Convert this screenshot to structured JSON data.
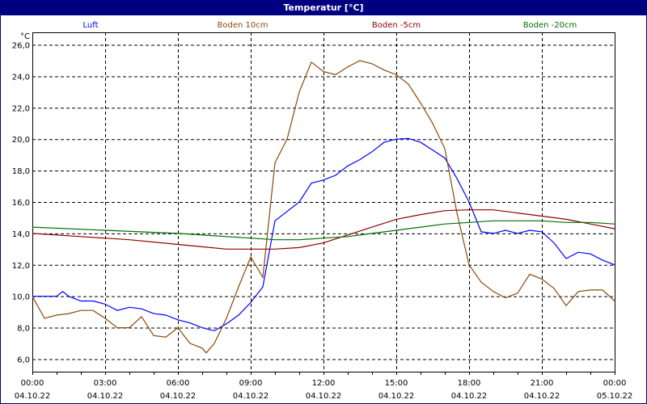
{
  "window": {
    "title": "Temperatur [°C]"
  },
  "chart_data": {
    "type": "line",
    "title": "Temperatur [°C]",
    "ylabel": "°C",
    "ylim": [
      5.2,
      26.8
    ],
    "yticks": [
      "6,0",
      "8,0",
      "10,0",
      "12,0",
      "14,0",
      "16,0",
      "18,0",
      "20,0",
      "22,0",
      "24,0",
      "26,0"
    ],
    "ytick_values": [
      6,
      8,
      10,
      12,
      14,
      16,
      18,
      20,
      22,
      24,
      26
    ],
    "xlim": [
      "04.10.22 00:00",
      "05.10.22 00:00"
    ],
    "xticks": [
      {
        "time": "00:00",
        "date": "04.10.22"
      },
      {
        "time": "03:00",
        "date": "04.10.22"
      },
      {
        "time": "06:00",
        "date": "04.10.22"
      },
      {
        "time": "09:00",
        "date": "04.10.22"
      },
      {
        "time": "12:00",
        "date": "04.10.22"
      },
      {
        "time": "15:00",
        "date": "04.10.22"
      },
      {
        "time": "18:00",
        "date": "04.10.22"
      },
      {
        "time": "21:00",
        "date": "04.10.22"
      },
      {
        "time": "00:00",
        "date": "05.10.22"
      }
    ],
    "grid": true,
    "legend_placement": "top",
    "series": [
      {
        "name": "Luft",
        "color": "#0000ff",
        "x": [
          "00:00",
          "00:30",
          "01:00",
          "01:15",
          "01:30",
          "02:00",
          "02:30",
          "03:00",
          "03:30",
          "04:00",
          "04:30",
          "05:00",
          "05:30",
          "06:00",
          "06:30",
          "07:00",
          "07:30",
          "08:00",
          "08:30",
          "09:00",
          "09:30",
          "10:00",
          "10:30",
          "11:00",
          "11:30",
          "12:00",
          "12:30",
          "13:00",
          "13:30",
          "14:00",
          "14:30",
          "15:00",
          "15:30",
          "16:00",
          "16:30",
          "17:00",
          "17:30",
          "18:00",
          "18:30",
          "19:00",
          "19:30",
          "20:00",
          "20:30",
          "21:00",
          "21:30",
          "22:00",
          "22:30",
          "23:00",
          "23:30",
          "24:00"
        ],
        "values": [
          10.0,
          10.0,
          10.0,
          10.3,
          10.0,
          9.7,
          9.7,
          9.5,
          9.1,
          9.3,
          9.2,
          8.9,
          8.8,
          8.5,
          8.3,
          8.0,
          7.8,
          8.25,
          8.8,
          9.6,
          10.6,
          14.8,
          15.4,
          16.0,
          17.2,
          17.4,
          17.7,
          18.3,
          18.7,
          19.2,
          19.8,
          20.0,
          20.05,
          19.8,
          19.3,
          18.8,
          17.5,
          16.0,
          14.1,
          14.0,
          14.2,
          14.0,
          14.2,
          14.1,
          13.4,
          12.4,
          12.8,
          12.7,
          12.3,
          12.0
        ]
      },
      {
        "name": "Boden 10cm",
        "color": "#8b4a0c",
        "x": [
          "00:00",
          "00:30",
          "01:00",
          "01:30",
          "02:00",
          "02:30",
          "03:00",
          "03:30",
          "04:00",
          "04:30",
          "05:00",
          "05:30",
          "06:00",
          "06:30",
          "07:00",
          "07:10",
          "07:30",
          "08:00",
          "08:30",
          "09:00",
          "09:30",
          "10:00",
          "10:30",
          "11:00",
          "11:30",
          "12:00",
          "12:30",
          "13:00",
          "13:30",
          "14:00",
          "14:30",
          "15:00",
          "15:30",
          "16:00",
          "16:30",
          "17:00",
          "17:30",
          "18:00",
          "18:30",
          "19:00",
          "19:30",
          "20:00",
          "20:30",
          "21:00",
          "21:30",
          "22:00",
          "22:30",
          "23:00",
          "23:30",
          "24:00"
        ],
        "values": [
          10.0,
          8.6,
          8.8,
          8.9,
          9.1,
          9.1,
          8.6,
          8.0,
          8.0,
          8.7,
          7.5,
          7.4,
          8.0,
          7.0,
          6.7,
          6.4,
          7.0,
          8.6,
          10.6,
          12.5,
          11.2,
          18.5,
          20.0,
          23.0,
          24.9,
          24.3,
          24.1,
          24.6,
          25.0,
          24.8,
          24.4,
          24.1,
          23.5,
          22.3,
          21.0,
          19.4,
          15.3,
          12.0,
          10.9,
          10.3,
          9.9,
          10.2,
          11.4,
          11.1,
          10.5,
          9.4,
          10.3,
          10.4,
          10.4,
          9.7
        ]
      },
      {
        "name": "Boden -5cm",
        "color": "#900000",
        "x": [
          "00:00",
          "02:00",
          "04:00",
          "06:00",
          "08:00",
          "10:00",
          "11:00",
          "12:00",
          "13:00",
          "14:00",
          "15:00",
          "16:00",
          "17:00",
          "18:00",
          "19:00",
          "20:00",
          "21:00",
          "22:00",
          "23:00",
          "24:00"
        ],
        "values": [
          14.0,
          13.8,
          13.6,
          13.3,
          13.0,
          13.0,
          13.1,
          13.4,
          13.9,
          14.4,
          14.9,
          15.2,
          15.45,
          15.5,
          15.5,
          15.3,
          15.1,
          14.9,
          14.6,
          14.3
        ]
      },
      {
        "name": "Boden -20cm",
        "color": "#007000",
        "x": [
          "00:00",
          "03:00",
          "06:00",
          "09:00",
          "10:00",
          "11:00",
          "12:00",
          "13:00",
          "14:00",
          "15:00",
          "16:00",
          "17:00",
          "18:00",
          "19:00",
          "20:00",
          "21:00",
          "22:00",
          "23:00",
          "24:00"
        ],
        "values": [
          14.4,
          14.2,
          14.0,
          13.7,
          13.6,
          13.6,
          13.7,
          13.8,
          14.0,
          14.2,
          14.4,
          14.6,
          14.7,
          14.8,
          14.8,
          14.8,
          14.7,
          14.7,
          14.6
        ]
      }
    ]
  }
}
